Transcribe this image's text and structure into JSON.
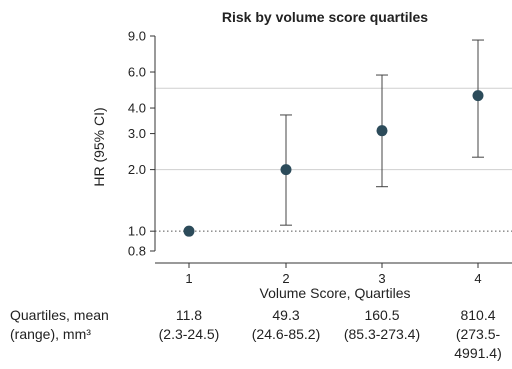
{
  "chart_data": {
    "type": "scatter",
    "title": "Risk by volume score quartiles",
    "xlabel": "Volume Score, Quartiles",
    "ylabel": "HR (95% CI)",
    "yscale": "log",
    "ylim": [
      0.8,
      9.0
    ],
    "yticks": [
      "0.8",
      "1.0",
      "2.0",
      "3.0",
      "4.0",
      "6.0",
      "9.0"
    ],
    "xticks": [
      "1",
      "2",
      "3",
      "4"
    ],
    "reference_line": 1.0,
    "grid_lines": [
      2.0,
      5.0
    ],
    "color": "#2c4b5a",
    "points": [
      {
        "x": "1",
        "hr": 1.0,
        "ci": null
      },
      {
        "x": "2",
        "hr": 2.0,
        "ci": [
          1.07,
          3.7
        ]
      },
      {
        "x": "3",
        "hr": 3.1,
        "ci": [
          1.65,
          5.8
        ]
      },
      {
        "x": "4",
        "hr": 4.6,
        "ci": [
          2.3,
          8.6
        ]
      }
    ]
  },
  "table": {
    "row_label": "Quartiles, mean\n(range), mm³",
    "cells": [
      "11.8\n(2.3-24.5)",
      "49.3\n(24.6-85.2)",
      "160.5\n(85.3-273.4)",
      "810.4\n(273.5-\n4991.4)"
    ]
  }
}
